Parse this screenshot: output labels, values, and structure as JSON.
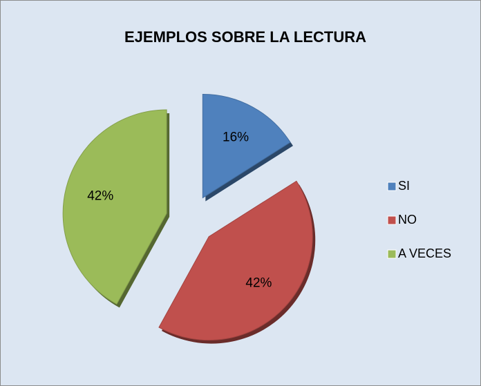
{
  "chart_data": {
    "type": "pie",
    "title": "EJEMPLOS SOBRE LA LECTURA",
    "categories": [
      "SI",
      "NO",
      "A VECES"
    ],
    "values": [
      16,
      42,
      42
    ],
    "value_labels": [
      "16%",
      "42%",
      "42%"
    ],
    "colors": [
      "#4f81bd",
      "#c0504d",
      "#9bbb59"
    ],
    "legend": "right"
  }
}
